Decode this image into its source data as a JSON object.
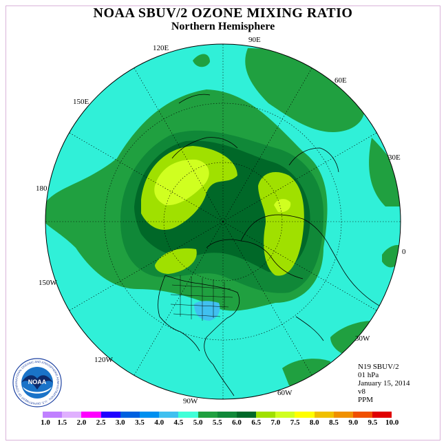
{
  "title": "NOAA SBUV/2 OZONE MIXING RATIO",
  "subtitle": "Northern Hemisphere",
  "longitude_labels": {
    "e90": "90E",
    "e120": "120E",
    "e60": "60E",
    "e150": "150E",
    "e30": "30E",
    "l180": "180",
    "l0": "0",
    "w150": "150W",
    "w30": "30W",
    "w120": "120W",
    "w60": "60W",
    "w90": "90W"
  },
  "info": {
    "satellite": "N19 SBUV/2",
    "level": "01 hPa",
    "date": "January 15, 2014",
    "version": "v8",
    "units": "PPM"
  },
  "logo": {
    "text": "NOAA",
    "ring_text": "NATIONAL OCEANIC AND ATMOSPHERIC ADMINISTRATION · U.S. DEPARTMENT OF COMMERCE"
  },
  "colorbar": {
    "ticks": [
      "1.0",
      "1.5",
      "2.0",
      "2.5",
      "3.0",
      "3.5",
      "4.0",
      "4.5",
      "5.0",
      "5.5",
      "6.0",
      "6.5",
      "7.0",
      "7.5",
      "8.0",
      "8.5",
      "9.0",
      "9.5",
      "10.0"
    ],
    "colors": [
      "#c080ff",
      "#e0b0ff",
      "#ff00ff",
      "#2000ff",
      "#0060e0",
      "#0090f0",
      "#40c0f0",
      "#40ffd8",
      "#20a040",
      "#108838",
      "#006828",
      "#a0e000",
      "#d0ff20",
      "#ffff00",
      "#f0c000",
      "#f09000",
      "#f05000",
      "#e00000",
      "#a05030"
    ]
  },
  "colors": {
    "cyan": "#30f0d8",
    "green_mid": "#20a040",
    "green_dark": "#108838",
    "green_darkest": "#006828",
    "lime": "#a0e000",
    "yellowgreen": "#d0ff20",
    "blue": "#40c0f0"
  }
}
